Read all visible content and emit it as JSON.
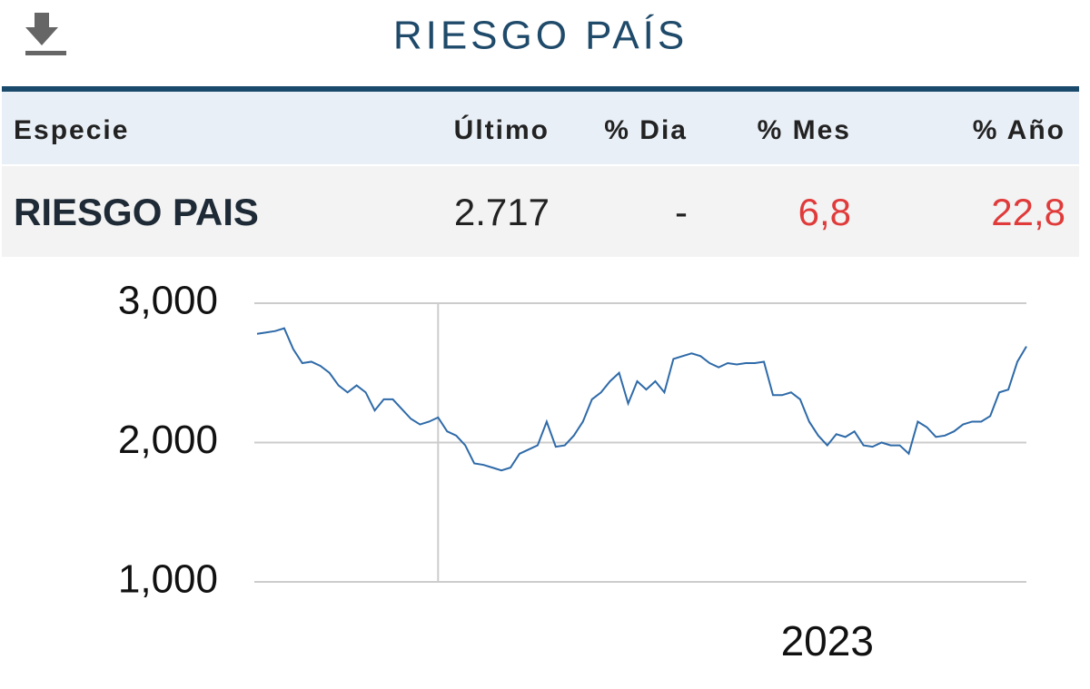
{
  "header": {
    "title": "RIESGO PAÍS"
  },
  "table": {
    "columns": [
      "Especie",
      "Último",
      "% Dia",
      "% Mes",
      "% Año"
    ],
    "rows": [
      [
        "RIESGO PAIS",
        "2.717",
        "-",
        "6,8",
        "22,8"
      ]
    ]
  },
  "chart_data": {
    "type": "line",
    "color": "#2e6aa8",
    "grid": true,
    "ylim": [
      1000,
      3000
    ],
    "yticks": [
      {
        "value": 1000,
        "label": "1,000"
      },
      {
        "value": 2000,
        "label": "2,000"
      },
      {
        "value": 3000,
        "label": "3,000"
      }
    ],
    "xgrid": [
      20
    ],
    "categories": [
      null,
      null,
      null,
      null,
      null,
      null,
      null,
      null,
      null,
      null,
      null,
      null,
      null,
      null,
      null,
      null,
      null,
      null,
      null,
      null,
      null,
      null,
      null,
      null,
      null,
      null,
      null,
      null,
      null,
      null,
      null,
      null,
      null,
      null,
      null,
      null,
      null,
      null,
      null,
      null,
      null,
      null,
      null,
      null,
      null,
      null,
      null,
      null,
      null,
      null,
      null,
      null,
      null,
      null,
      null,
      null,
      null,
      null,
      null,
      null,
      null,
      null,
      null,
      "2023",
      null,
      null,
      null,
      null,
      null,
      null,
      null,
      null,
      null,
      null,
      null,
      null,
      null,
      null,
      null,
      null,
      null,
      null,
      null,
      null,
      null,
      null
    ],
    "values": [
      2780,
      2790,
      2800,
      2820,
      2670,
      2570,
      2580,
      2550,
      2500,
      2410,
      2360,
      2410,
      2360,
      2230,
      2310,
      2310,
      2240,
      2170,
      2130,
      2150,
      2180,
      2080,
      2050,
      1980,
      1850,
      1840,
      1820,
      1800,
      1820,
      1920,
      1950,
      1980,
      2150,
      1970,
      1980,
      2050,
      2150,
      2310,
      2360,
      2440,
      2500,
      2280,
      2440,
      2380,
      2440,
      2360,
      2600,
      2620,
      2640,
      2620,
      2570,
      2540,
      2570,
      2560,
      2570,
      2570,
      2580,
      2340,
      2340,
      2360,
      2310,
      2150,
      2050,
      1980,
      2060,
      2040,
      2080,
      1980,
      1970,
      2000,
      1980,
      1980,
      1920,
      2150,
      2110,
      2040,
      2050,
      2080,
      2130,
      2150,
      2150,
      2190,
      2360,
      2380,
      2580,
      2690
    ]
  }
}
